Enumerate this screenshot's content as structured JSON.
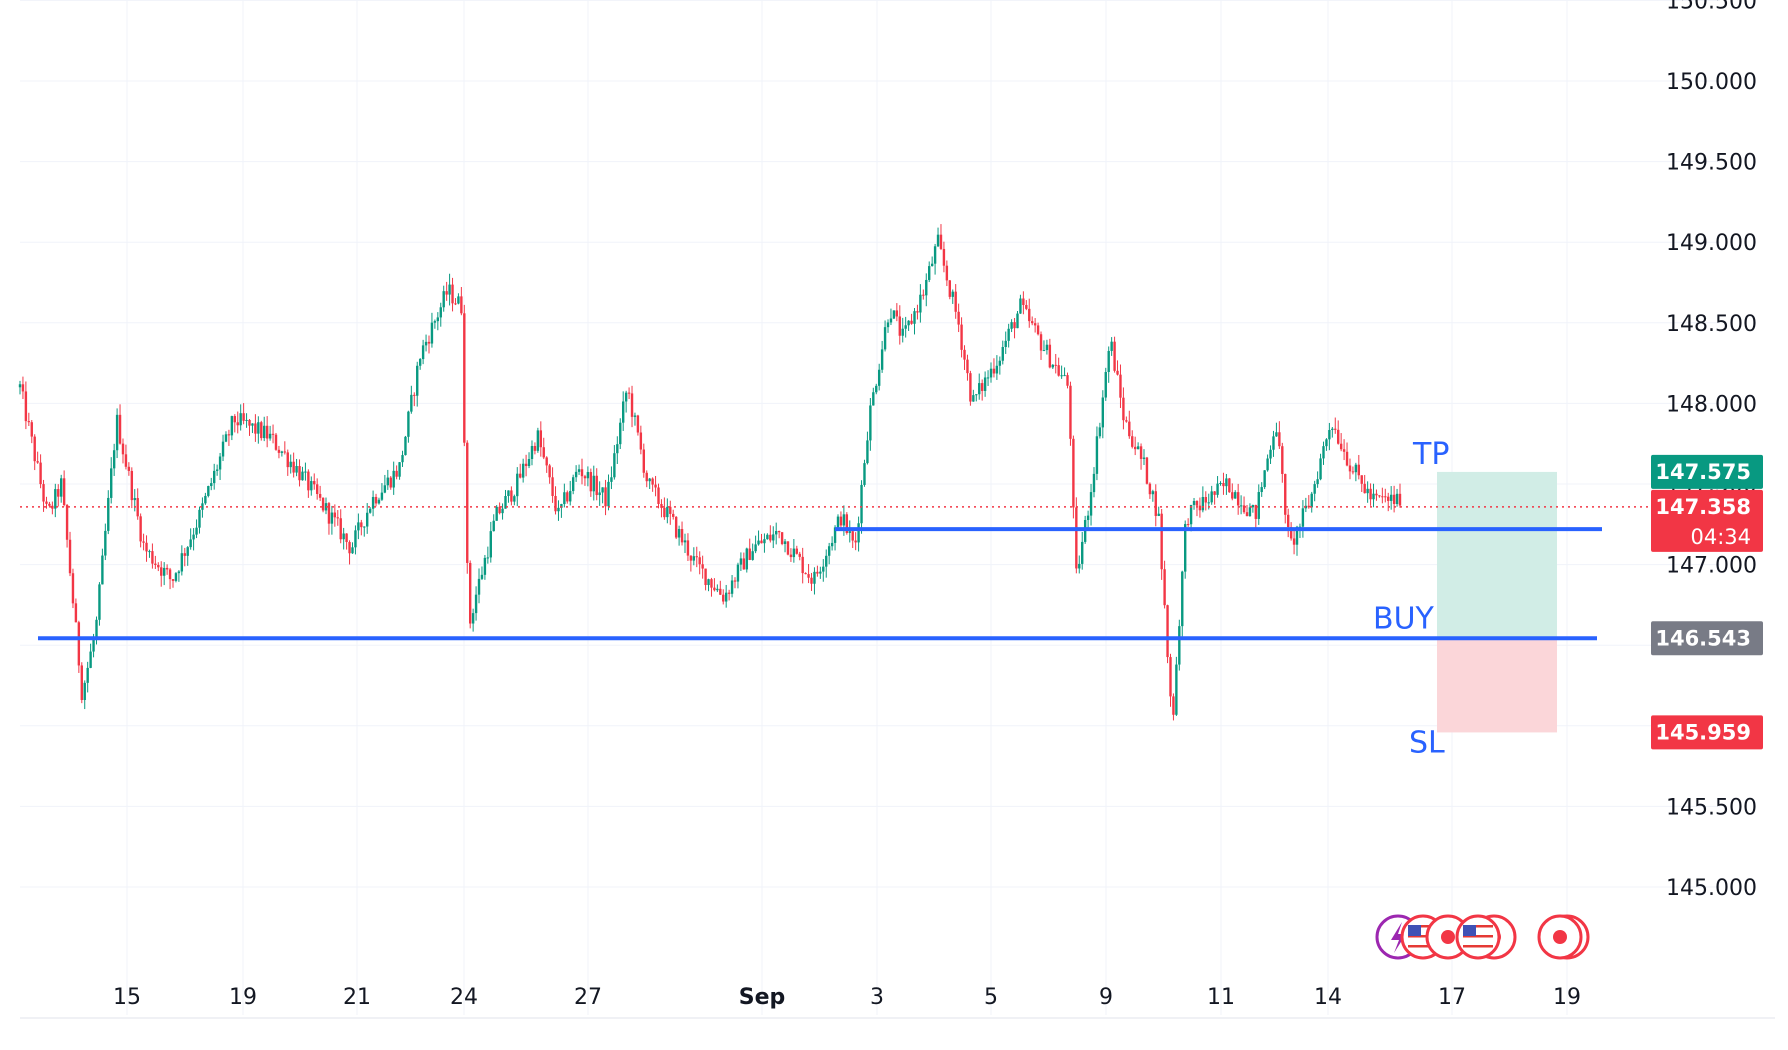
{
  "chart_data": {
    "type": "candlestick",
    "title": "",
    "ylim": [
      144.5,
      150.5
    ],
    "y_ticks": [
      "150.500",
      "150.000",
      "149.500",
      "149.000",
      "148.500",
      "148.000",
      "147.500",
      "147.000",
      "146.500",
      "146.000",
      "145.500",
      "145.000"
    ],
    "y_tick_values": [
      150.5,
      150.0,
      149.5,
      149.0,
      148.5,
      148.0,
      147.5,
      147.0,
      146.5,
      146.0,
      145.5,
      145.0
    ],
    "x_ticks": [
      {
        "label": "15",
        "bold": false
      },
      {
        "label": "19",
        "bold": false
      },
      {
        "label": "21",
        "bold": false
      },
      {
        "label": "24",
        "bold": false
      },
      {
        "label": "27",
        "bold": false
      },
      {
        "label": "Sep",
        "bold": true
      },
      {
        "label": "3",
        "bold": false
      },
      {
        "label": "5",
        "bold": false
      },
      {
        "label": "9",
        "bold": false
      },
      {
        "label": "11",
        "bold": false
      },
      {
        "label": "14",
        "bold": false
      },
      {
        "label": "17",
        "bold": false
      },
      {
        "label": "19",
        "bold": false
      }
    ],
    "grid": true,
    "price_path": [
      [
        0.0,
        148.1
      ],
      [
        0.02,
        147.3
      ],
      [
        0.03,
        147.5
      ],
      [
        0.045,
        146.2
      ],
      [
        0.055,
        146.6
      ],
      [
        0.07,
        147.9
      ],
      [
        0.09,
        147.1
      ],
      [
        0.11,
        146.9
      ],
      [
        0.13,
        147.3
      ],
      [
        0.155,
        147.9
      ],
      [
        0.18,
        147.8
      ],
      [
        0.2,
        147.6
      ],
      [
        0.225,
        147.3
      ],
      [
        0.24,
        147.1
      ],
      [
        0.255,
        147.4
      ],
      [
        0.275,
        147.6
      ],
      [
        0.29,
        148.3
      ],
      [
        0.31,
        148.7
      ],
      [
        0.32,
        148.6
      ],
      [
        0.325,
        146.6
      ],
      [
        0.33,
        146.8
      ],
      [
        0.345,
        147.3
      ],
      [
        0.36,
        147.5
      ],
      [
        0.375,
        147.8
      ],
      [
        0.39,
        147.3
      ],
      [
        0.405,
        147.6
      ],
      [
        0.425,
        147.4
      ],
      [
        0.44,
        148.1
      ],
      [
        0.455,
        147.5
      ],
      [
        0.47,
        147.3
      ],
      [
        0.49,
        147.0
      ],
      [
        0.51,
        146.8
      ],
      [
        0.53,
        147.1
      ],
      [
        0.55,
        147.2
      ],
      [
        0.575,
        146.9
      ],
      [
        0.595,
        147.3
      ],
      [
        0.605,
        147.1
      ],
      [
        0.615,
        147.9
      ],
      [
        0.63,
        148.6
      ],
      [
        0.64,
        148.4
      ],
      [
        0.655,
        148.7
      ],
      [
        0.665,
        149.0
      ],
      [
        0.68,
        148.5
      ],
      [
        0.69,
        148.0
      ],
      [
        0.71,
        148.3
      ],
      [
        0.725,
        148.6
      ],
      [
        0.745,
        148.3
      ],
      [
        0.76,
        148.1
      ],
      [
        0.765,
        146.9
      ],
      [
        0.775,
        147.4
      ],
      [
        0.79,
        148.4
      ],
      [
        0.8,
        147.9
      ],
      [
        0.815,
        147.6
      ],
      [
        0.825,
        147.3
      ],
      [
        0.835,
        146.0
      ],
      [
        0.845,
        147.3
      ],
      [
        0.86,
        147.4
      ],
      [
        0.875,
        147.5
      ],
      [
        0.895,
        147.3
      ],
      [
        0.91,
        147.9
      ],
      [
        0.92,
        147.1
      ],
      [
        0.935,
        147.4
      ],
      [
        0.95,
        147.9
      ],
      [
        0.965,
        147.6
      ],
      [
        0.98,
        147.4
      ],
      [
        1.0,
        147.4
      ]
    ],
    "lines": [
      {
        "name": "upper-support",
        "price": 147.22,
        "x_start": 0.595,
        "x_end": 1.0
      },
      {
        "name": "buy-level",
        "price": 146.543,
        "x_start": 0.0,
        "x_end": 1.0
      }
    ],
    "position": {
      "tp": 147.575,
      "entry": 146.543,
      "sl": 145.959,
      "profit_color": "#d1ede6",
      "loss_color": "#fbd6d9"
    },
    "annotations": {
      "tp": "TP",
      "buy": "BUY",
      "sl": "SL"
    },
    "price_labels": {
      "tp": "147.575",
      "current": "147.358",
      "countdown": "04:34",
      "entry": "146.543",
      "sl": "145.959"
    },
    "current_price": 147.358,
    "colors": {
      "up": "#089981",
      "down": "#f23645",
      "line": "#2962ff",
      "tp_badge": "#089981",
      "current_badge": "#f23645",
      "entry_badge": "#787b86",
      "sl_badge": "#f23645"
    },
    "event_icons": [
      "lightning-icon",
      "us-flag-icon",
      "red-dot-icon",
      "us-flag-icon",
      "red-dot-icon"
    ]
  }
}
